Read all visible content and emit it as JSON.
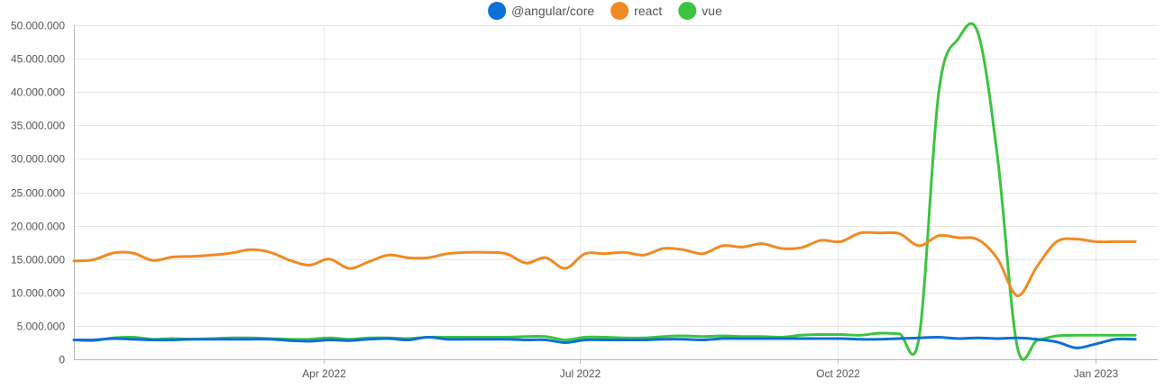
{
  "chart_data": {
    "type": "line",
    "x": [
      "2022-01-02",
      "2022-01-09",
      "2022-01-16",
      "2022-01-23",
      "2022-01-30",
      "2022-02-06",
      "2022-02-13",
      "2022-02-20",
      "2022-02-27",
      "2022-03-06",
      "2022-03-13",
      "2022-03-20",
      "2022-03-27",
      "2022-04-03",
      "2022-04-10",
      "2022-04-17",
      "2022-04-24",
      "2022-05-01",
      "2022-05-08",
      "2022-05-15",
      "2022-05-22",
      "2022-05-29",
      "2022-06-05",
      "2022-06-12",
      "2022-06-19",
      "2022-06-26",
      "2022-07-03",
      "2022-07-10",
      "2022-07-17",
      "2022-07-24",
      "2022-07-31",
      "2022-08-07",
      "2022-08-14",
      "2022-08-21",
      "2022-08-28",
      "2022-09-04",
      "2022-09-11",
      "2022-09-18",
      "2022-09-25",
      "2022-10-02",
      "2022-10-09",
      "2022-10-16",
      "2022-10-23",
      "2022-10-30",
      "2022-11-06",
      "2022-11-13",
      "2022-11-20",
      "2022-11-27",
      "2022-12-04",
      "2022-12-11",
      "2022-12-18",
      "2022-12-25",
      "2023-01-01",
      "2023-01-08",
      "2023-01-15"
    ],
    "series": [
      {
        "name": "@angular/core",
        "color": "#0e6fd6",
        "values": [
          2.9,
          2.9,
          3.1,
          3.0,
          2.9,
          2.9,
          3.0,
          3.0,
          3.0,
          3.0,
          3.0,
          2.8,
          2.7,
          2.9,
          2.8,
          3.0,
          3.1,
          2.9,
          3.3,
          3.0,
          3.0,
          3.0,
          3.0,
          2.9,
          2.9,
          2.5,
          2.9,
          2.9,
          2.9,
          2.9,
          3.0,
          3.0,
          2.9,
          3.1,
          3.1,
          3.1,
          3.1,
          3.1,
          3.1,
          3.1,
          3.0,
          3.0,
          3.1,
          3.2,
          3.3,
          3.1,
          3.2,
          3.1,
          3.2,
          3.0,
          2.6,
          1.7,
          2.3,
          3.0,
          3.0
        ]
      },
      {
        "name": "react",
        "color": "#f08a24",
        "values": [
          14.7,
          14.9,
          15.9,
          15.9,
          14.8,
          15.3,
          15.4,
          15.6,
          15.9,
          16.4,
          16.0,
          14.8,
          14.1,
          15.0,
          13.6,
          14.6,
          15.6,
          15.2,
          15.2,
          15.8,
          16.0,
          16.0,
          15.8,
          14.4,
          15.2,
          13.6,
          15.8,
          15.8,
          16.0,
          15.6,
          16.6,
          16.4,
          15.8,
          17.0,
          16.8,
          17.3,
          16.6,
          16.7,
          17.8,
          17.6,
          18.9,
          18.9,
          18.8,
          17.0,
          18.5,
          18.2,
          17.9,
          15.0,
          9.5,
          13.9,
          17.6,
          18.0,
          17.6,
          17.6,
          17.6
        ]
      },
      {
        "name": "vue",
        "color": "#3bc43f",
        "values": [
          2.9,
          2.8,
          3.2,
          3.3,
          3.0,
          3.1,
          3.0,
          3.1,
          3.2,
          3.2,
          3.1,
          3.0,
          3.0,
          3.2,
          3.0,
          3.2,
          3.2,
          3.1,
          3.3,
          3.3,
          3.3,
          3.3,
          3.3,
          3.4,
          3.4,
          2.9,
          3.3,
          3.3,
          3.2,
          3.2,
          3.4,
          3.5,
          3.4,
          3.5,
          3.4,
          3.4,
          3.3,
          3.6,
          3.7,
          3.7,
          3.6,
          3.9,
          3.8,
          3.3,
          40.0,
          48.0,
          48.8,
          30.0,
          1.8,
          2.8,
          3.5,
          3.6,
          3.6,
          3.6,
          3.6
        ]
      }
    ],
    "ylim": [
      0,
      50000000
    ],
    "yticks": [
      0,
      5000000,
      10000000,
      15000000,
      20000000,
      25000000,
      30000000,
      35000000,
      40000000,
      45000000,
      50000000
    ],
    "ytick_labels": [
      "0",
      "5.000.000",
      "10.000.000",
      "15.000.000",
      "20.000.000",
      "25.000.000",
      "30.000.000",
      "35.000.000",
      "40.000.000",
      "45.000.000",
      "50.000.000"
    ],
    "value_unit": 1000000,
    "xlim": [
      "2022-01-02",
      "2023-01-23"
    ],
    "xticks": [
      "2022-04-01",
      "2022-07-01",
      "2022-10-01",
      "2023-01-01"
    ],
    "xtick_labels": [
      "Apr 2022",
      "Jul 2022",
      "Oct 2022",
      "Jan 2023"
    ],
    "grid": true,
    "legend_position": "top-center"
  }
}
